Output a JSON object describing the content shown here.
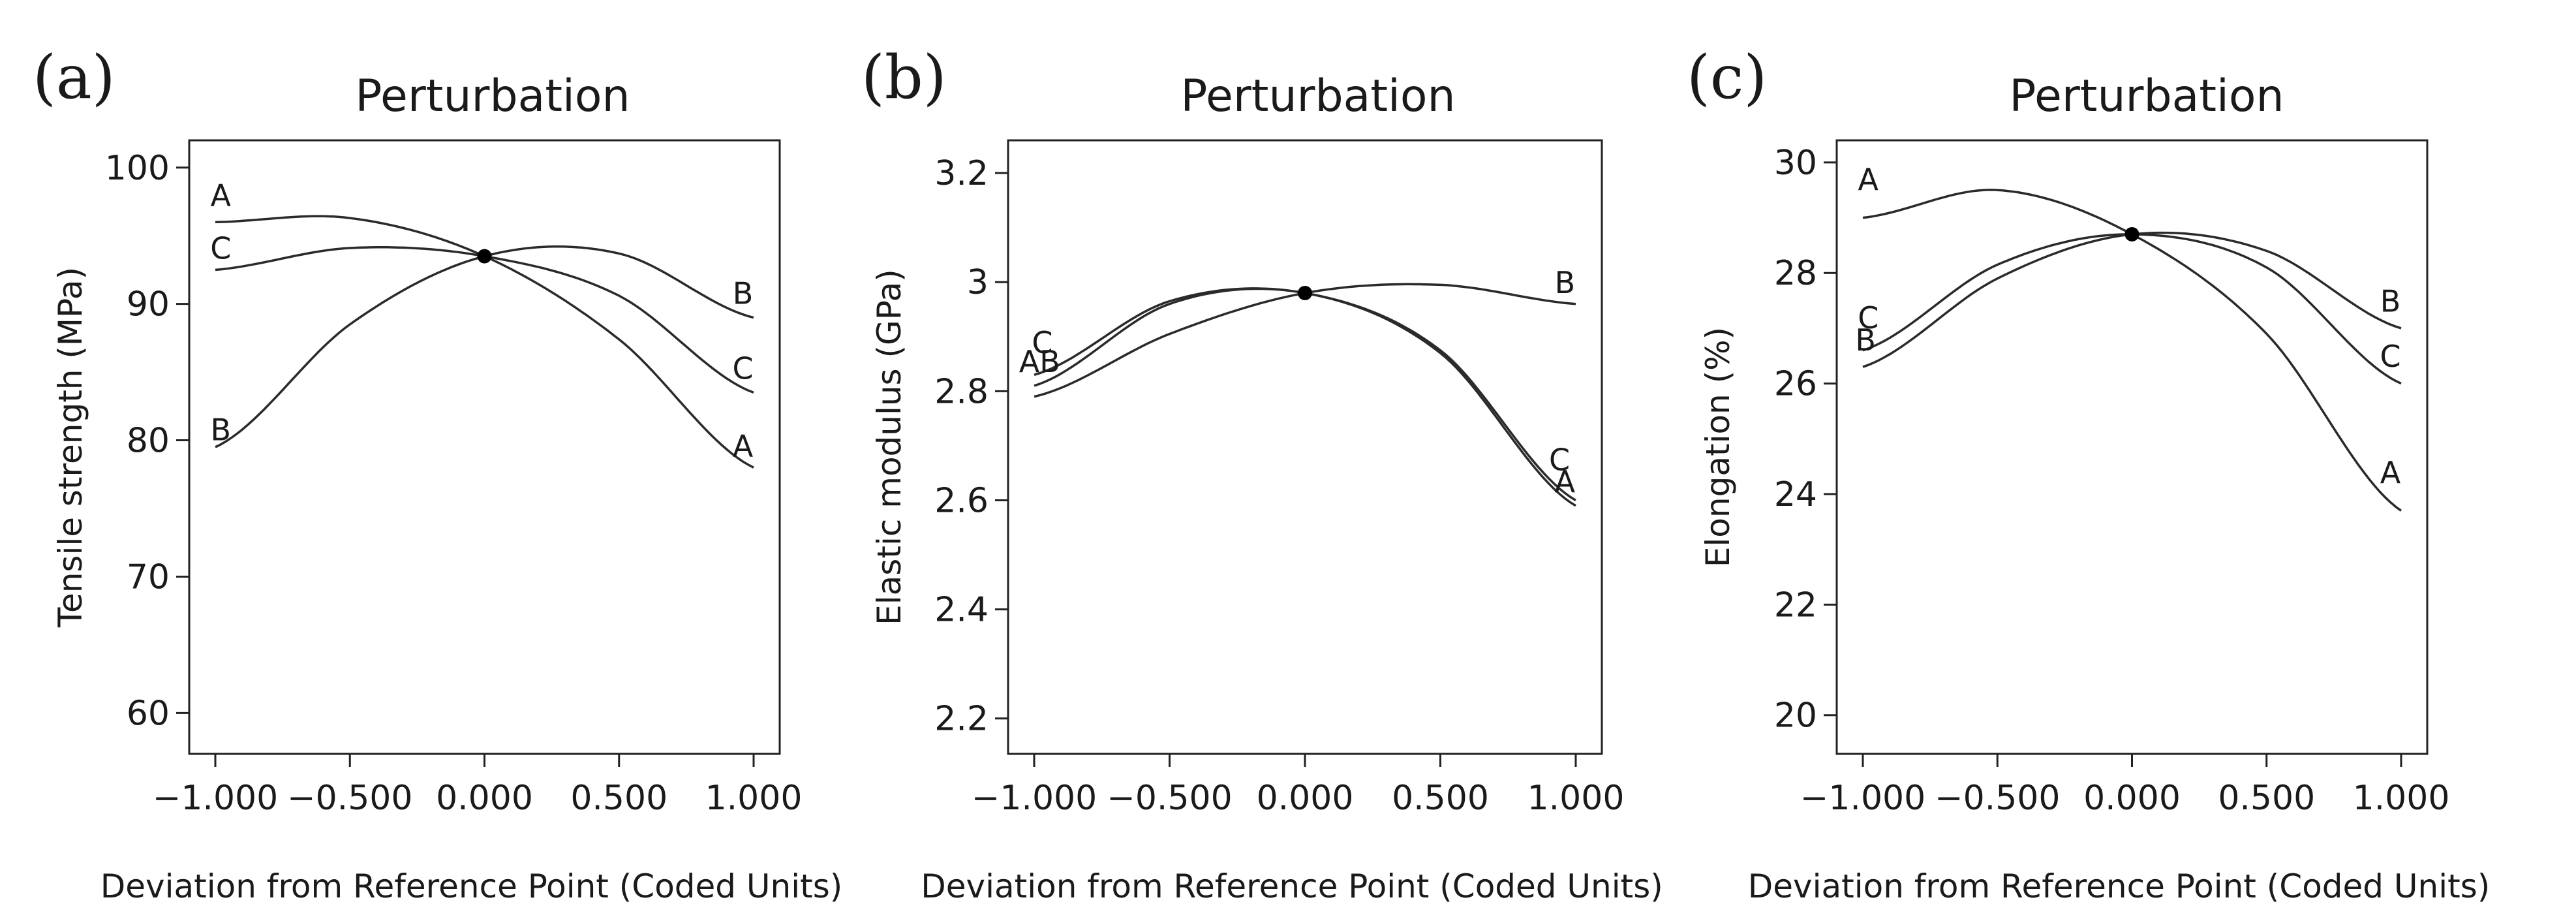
{
  "chart_data": [
    {
      "type": "line",
      "panel": "(a)",
      "title": "Perturbation",
      "xlabel": "Deviation from Reference Point (Coded Units)",
      "ylabel": "Tensile strength (MPa)",
      "xlim": [
        -1,
        1
      ],
      "ylim": [
        57,
        102
      ],
      "xticks": [
        -1,
        -0.5,
        0,
        0.5,
        1
      ],
      "xtick_labels": [
        "−1.000",
        "−0.500",
        "0.000",
        "0.500",
        "1.000"
      ],
      "yticks": [
        60,
        70,
        80,
        90,
        100
      ],
      "ytick_labels": [
        "60",
        "70",
        "80",
        "90",
        "100"
      ],
      "reference_point": {
        "x": 0,
        "y": 93.5
      },
      "series": [
        {
          "name": "A",
          "x": [
            -1,
            -0.5,
            0,
            0.5,
            1
          ],
          "y": [
            96,
            96.3,
            93.5,
            87.4,
            78
          ]
        },
        {
          "name": "B",
          "x": [
            -1,
            -0.5,
            0,
            0.5,
            1
          ],
          "y": [
            79.5,
            88.5,
            93.5,
            93.7,
            89
          ]
        },
        {
          "name": "C",
          "x": [
            -1,
            -0.5,
            0,
            0.5,
            1
          ],
          "y": [
            92.5,
            94.1,
            93.5,
            90.6,
            83.5
          ]
        }
      ],
      "curve_labels": [
        {
          "text": "A",
          "x": -0.98,
          "y": 97.2
        },
        {
          "text": "C",
          "x": -0.98,
          "y": 93.3
        },
        {
          "text": "B",
          "x": -0.98,
          "y": 80.0
        },
        {
          "text": "B",
          "x": 0.96,
          "y": 90.0
        },
        {
          "text": "C",
          "x": 0.96,
          "y": 84.5
        },
        {
          "text": "A",
          "x": 0.96,
          "y": 78.8
        }
      ]
    },
    {
      "type": "line",
      "panel": "(b)",
      "title": "Perturbation",
      "xlabel": "Deviation from Reference Point (Coded Units)",
      "ylabel": "Elastic modulus (GPa)",
      "xlim": [
        -1,
        1
      ],
      "ylim": [
        2.135,
        3.26
      ],
      "xticks": [
        -1,
        -0.5,
        0,
        0.5,
        1
      ],
      "xtick_labels": [
        "−1.000",
        "−0.500",
        "0.000",
        "0.500",
        "1.000"
      ],
      "yticks": [
        2.2,
        2.4,
        2.6,
        2.8,
        3.0,
        3.2
      ],
      "ytick_labels": [
        "2.2",
        "2.4",
        "2.6",
        "2.8",
        "3",
        "3.2"
      ],
      "reference_point": {
        "x": 0,
        "y": 2.98
      },
      "series": [
        {
          "name": "A",
          "x": [
            -1,
            -0.5,
            0,
            0.5,
            1
          ],
          "y": [
            2.81,
            2.96,
            2.98,
            2.87,
            2.59
          ]
        },
        {
          "name": "B",
          "x": [
            -1,
            -0.5,
            0,
            0.5,
            1
          ],
          "y": [
            2.79,
            2.905,
            2.98,
            2.995,
            2.96
          ]
        },
        {
          "name": "C",
          "x": [
            -1,
            -0.5,
            0,
            0.5,
            1
          ],
          "y": [
            2.83,
            2.965,
            2.98,
            2.875,
            2.6
          ]
        }
      ],
      "curve_labels": [
        {
          "text": "C",
          "x": -0.97,
          "y": 2.87
        },
        {
          "text": "AB",
          "x": -0.98,
          "y": 2.835
        },
        {
          "text": "C",
          "x": 0.94,
          "y": 2.655
        },
        {
          "text": "A",
          "x": 0.96,
          "y": 2.615
        },
        {
          "text": "B",
          "x": 0.96,
          "y": 2.98
        }
      ]
    },
    {
      "type": "line",
      "panel": "(c)",
      "title": "Perturbation",
      "xlabel": "Deviation from Reference Point (Coded Units)",
      "ylabel": "Elongation (%)",
      "xlim": [
        -1,
        1
      ],
      "ylim": [
        19.3,
        30.4
      ],
      "xticks": [
        -1,
        -0.5,
        0,
        0.5,
        1
      ],
      "xtick_labels": [
        "−1.000",
        "−0.500",
        "0.000",
        "0.500",
        "1.000"
      ],
      "yticks": [
        20,
        22,
        24,
        26,
        28,
        30
      ],
      "ytick_labels": [
        "20",
        "22",
        "24",
        "26",
        "28",
        "30"
      ],
      "reference_point": {
        "x": 0,
        "y": 28.7
      },
      "series": [
        {
          "name": "A",
          "x": [
            -1,
            -0.5,
            0,
            0.5,
            1
          ],
          "y": [
            29.0,
            29.5,
            28.7,
            26.9,
            23.7
          ]
        },
        {
          "name": "B",
          "x": [
            -1,
            -0.5,
            0,
            0.5,
            1
          ],
          "y": [
            26.3,
            27.9,
            28.7,
            28.4,
            27.0
          ]
        },
        {
          "name": "C",
          "x": [
            -1,
            -0.5,
            0,
            0.5,
            1
          ],
          "y": [
            26.6,
            28.15,
            28.7,
            28.1,
            26.0
          ]
        }
      ],
      "curve_labels": [
        {
          "text": "A",
          "x": -0.98,
          "y": 29.5
        },
        {
          "text": "C",
          "x": -0.98,
          "y": 27.0
        },
        {
          "text": "B",
          "x": -0.99,
          "y": 26.6
        },
        {
          "text": "B",
          "x": 0.96,
          "y": 27.3
        },
        {
          "text": "C",
          "x": 0.96,
          "y": 26.3
        },
        {
          "text": "A",
          "x": 0.96,
          "y": 24.2
        }
      ]
    }
  ]
}
